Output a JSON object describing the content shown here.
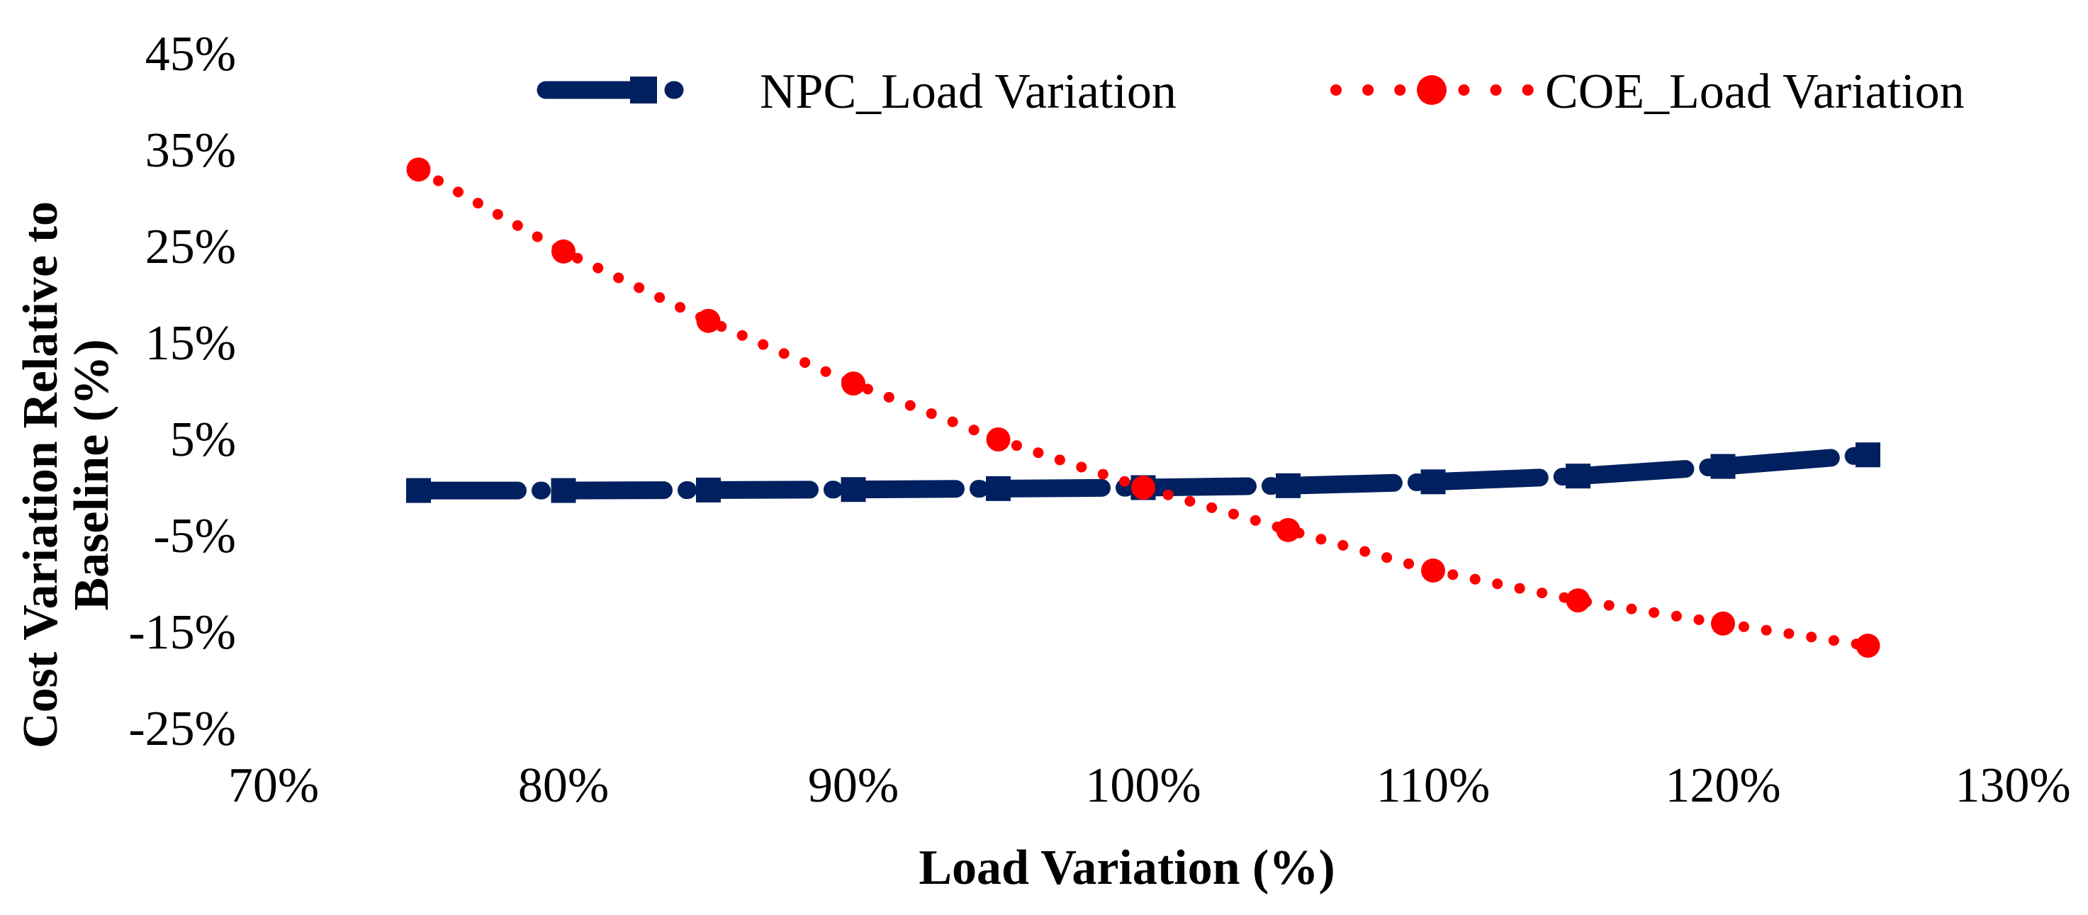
{
  "chart_data": {
    "type": "line",
    "title": "",
    "xlabel": "Load Variation (%)",
    "ylabel": "Cost Variation Relative to Baseline (%)",
    "ylabel_line1": "Cost Variation Relative to",
    "ylabel_line2": "Baseline (%)",
    "grid": false,
    "legend_position": "top",
    "xlim": [
      70,
      130
    ],
    "ylim": [
      -25,
      45
    ],
    "x_ticks": [
      {
        "label": "70%",
        "value": 70
      },
      {
        "label": "80%",
        "value": 80
      },
      {
        "label": "90%",
        "value": 90
      },
      {
        "label": "100%",
        "value": 100
      },
      {
        "label": "110%",
        "value": 110
      },
      {
        "label": "120%",
        "value": 120
      },
      {
        "label": "130%",
        "value": 130
      }
    ],
    "y_ticks": [
      {
        "label": "45%",
        "value": 45
      },
      {
        "label": "35%",
        "value": 35
      },
      {
        "label": "25%",
        "value": 25
      },
      {
        "label": "15%",
        "value": 15
      },
      {
        "label": "5%",
        "value": 5
      },
      {
        "label": "-5%",
        "value": -5
      },
      {
        "label": "-15%",
        "value": -15
      },
      {
        "label": "-25%",
        "value": -25
      }
    ],
    "x": [
      75,
      80,
      85,
      90,
      95,
      100,
      105,
      110,
      115,
      120,
      125
    ],
    "series": [
      {
        "name": "NPC_Load Variation",
        "color": "#002060",
        "line_style": "long-dash-dot",
        "marker": "square",
        "values": [
          -0.3,
          -0.3,
          -0.25,
          -0.2,
          -0.1,
          0,
          0.2,
          0.6,
          1.2,
          2.2,
          3.4
        ]
      },
      {
        "name": "COE_Load Variation",
        "color": "#FF0000",
        "line_style": "dotted",
        "marker": "circle",
        "values": [
          33,
          24.5,
          17.3,
          10.8,
          5,
          0,
          -4.4,
          -8.6,
          -11.7,
          -14.1,
          -16.4
        ]
      }
    ]
  }
}
